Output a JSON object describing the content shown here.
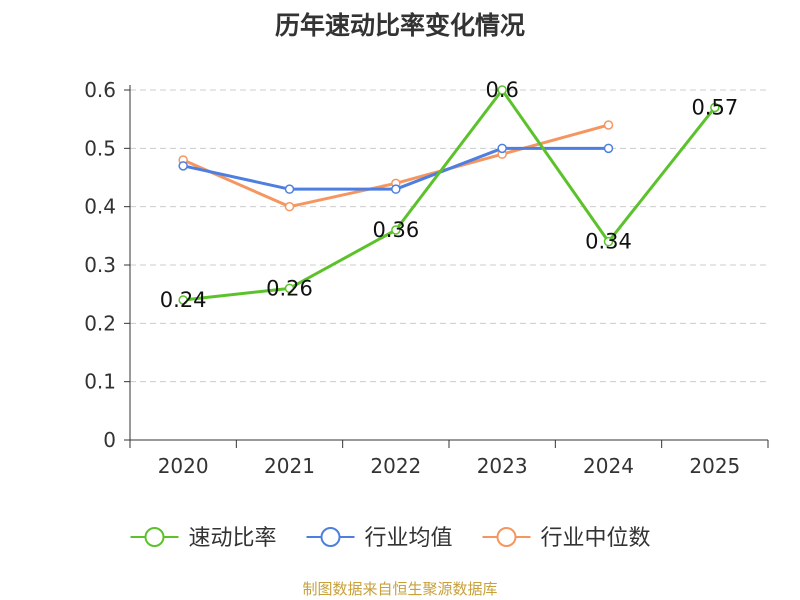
{
  "chart_data": {
    "type": "line",
    "title": "历年速动比率变化情况",
    "categories": [
      "2020",
      "2021",
      "2022",
      "2023",
      "2024",
      "2025"
    ],
    "y_ticks": [
      "0",
      "0.1",
      "0.2",
      "0.3",
      "0.4",
      "0.5",
      "0.6"
    ],
    "ylim": [
      0,
      0.6
    ],
    "grid": true,
    "legend_position": "bottom",
    "series": [
      {
        "name": "速动比率",
        "color": "#5cc22b",
        "values": [
          0.24,
          0.26,
          0.36,
          0.6,
          0.34,
          0.57
        ],
        "labels": [
          "0.24",
          "0.26",
          "0.36",
          "0.6",
          "0.34",
          "0.57"
        ]
      },
      {
        "name": "行业均值",
        "color": "#4e7fe0",
        "values": [
          0.47,
          0.43,
          0.43,
          0.5,
          0.5,
          null
        ]
      },
      {
        "name": "行业中位数",
        "color": "#f59661",
        "values": [
          0.48,
          0.4,
          0.44,
          0.49,
          0.54,
          null
        ]
      }
    ]
  },
  "source": "制图数据来自恒生聚源数据库"
}
